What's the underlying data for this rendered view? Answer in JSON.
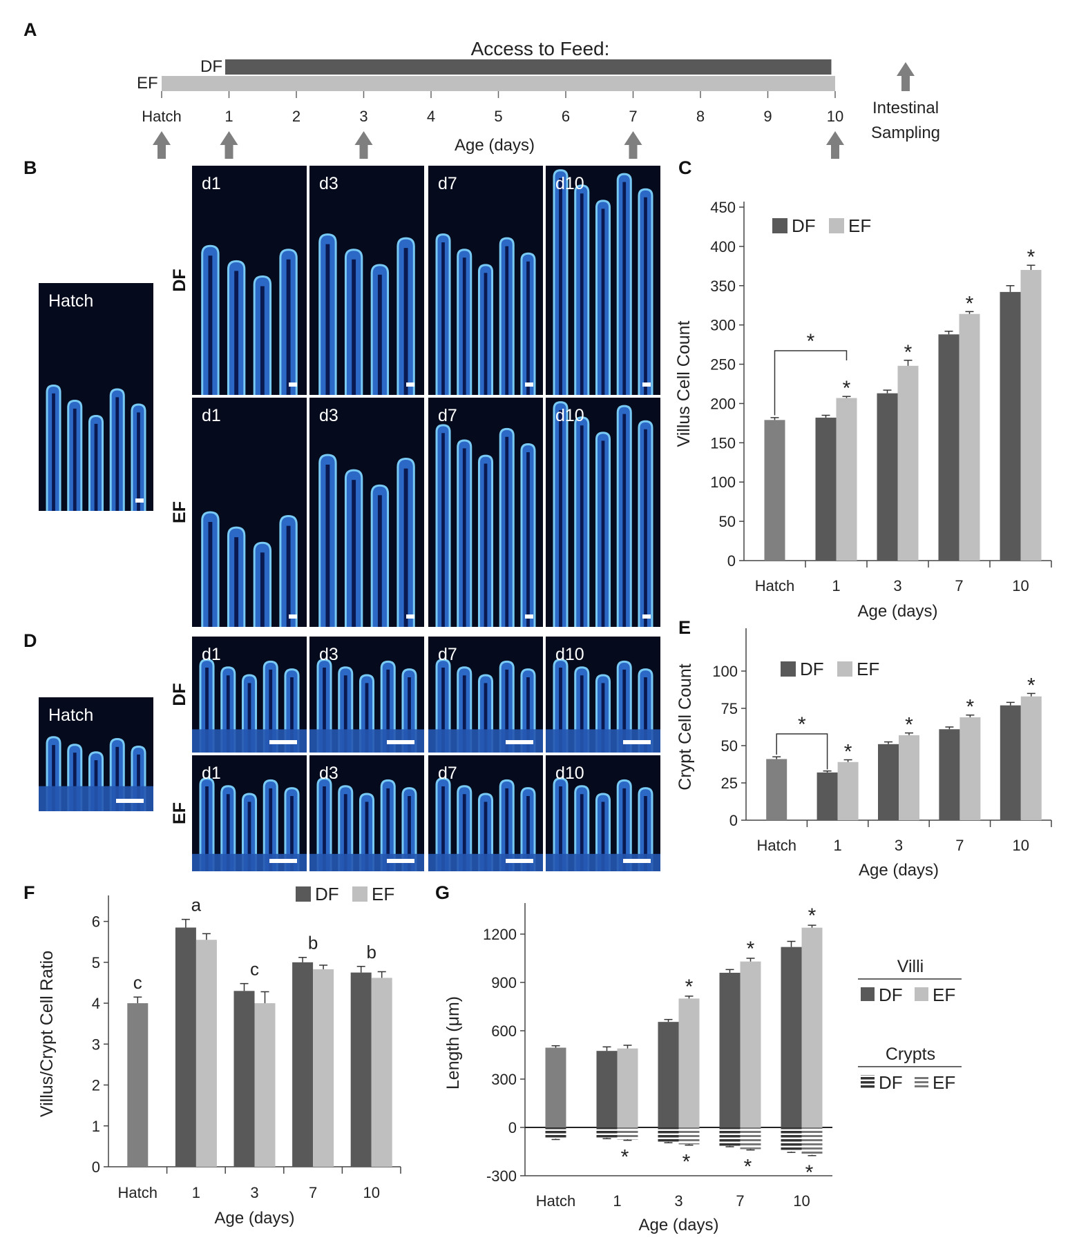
{
  "panels": {
    "A": "A",
    "B": "B",
    "C": "C",
    "D": "D",
    "E": "E",
    "F": "F",
    "G": "G"
  },
  "colors": {
    "DF": "#595959",
    "EF": "#bfbfbf",
    "hatch": "#808080",
    "arrow": "#7f7f7f",
    "micro_bg": "#050a1c",
    "micro_tissue": "#2f6fd0",
    "micro_edge": "#7fd4ff"
  },
  "timeline": {
    "title": "Access to Feed:",
    "df_label": "DF",
    "ef_label": "EF",
    "ticks": [
      "Hatch",
      "1",
      "2",
      "3",
      "4",
      "5",
      "6",
      "7",
      "8",
      "9",
      "10"
    ],
    "xlabel": "Age (days)",
    "sampling_label_1": "Intestinal",
    "sampling_label_2": "Sampling",
    "sampling_days": [
      "Hatch",
      "1",
      "3",
      "7",
      "10"
    ]
  },
  "micrographs": {
    "hatch_label": "Hatch",
    "row_df": "DF",
    "row_ef": "EF",
    "days": [
      "d1",
      "d3",
      "d7",
      "d10"
    ]
  },
  "chart_data": [
    {
      "panel": "C",
      "type": "bar",
      "categories": [
        "Hatch",
        "1",
        "3",
        "7",
        "10"
      ],
      "series": [
        {
          "name": "DF",
          "values": [
            null,
            182,
            213,
            288,
            342
          ],
          "errors": [
            null,
            3,
            4,
            4,
            8
          ]
        },
        {
          "name": "EF",
          "values": [
            null,
            207,
            248,
            314,
            370
          ],
          "errors": [
            null,
            2,
            7,
            3,
            6
          ]
        }
      ],
      "hatch": {
        "value": 179,
        "error": 3
      },
      "ylim": [
        0,
        450
      ],
      "yticks": [
        0,
        50,
        100,
        150,
        200,
        250,
        300,
        350,
        400,
        450
      ],
      "ylabel": "Villus Cell Count",
      "xlabel": "Age (days)",
      "legend": [
        "DF",
        "EF"
      ],
      "legend_position": "top-left",
      "annotations": [
        "*",
        "*",
        "*",
        "*",
        "*"
      ],
      "bracket_label": "*"
    },
    {
      "panel": "E",
      "type": "bar",
      "categories": [
        "Hatch",
        "1",
        "3",
        "7",
        "10"
      ],
      "series": [
        {
          "name": "DF",
          "values": [
            null,
            32,
            51,
            61,
            77
          ],
          "errors": [
            null,
            1,
            1.5,
            1.5,
            2
          ]
        },
        {
          "name": "EF",
          "values": [
            null,
            39,
            57,
            69,
            83
          ],
          "errors": [
            null,
            1.5,
            1.5,
            1.5,
            2
          ]
        }
      ],
      "hatch": {
        "value": 41,
        "error": 1.5
      },
      "ylim": [
        0,
        125
      ],
      "yticks": [
        0,
        25,
        50,
        75,
        100
      ],
      "ylabel": "Crypt Cell Count",
      "xlabel": "Age (days)",
      "legend": [
        "DF",
        "EF"
      ],
      "legend_position": "top-left",
      "annotations": [
        "*",
        "*",
        "*",
        "*",
        "*"
      ],
      "bracket_label": "*"
    },
    {
      "panel": "F",
      "type": "bar",
      "categories": [
        "Hatch",
        "1",
        "3",
        "7",
        "10"
      ],
      "series": [
        {
          "name": "DF",
          "values": [
            null,
            5.85,
            4.3,
            5.0,
            4.75
          ],
          "errors": [
            null,
            0.2,
            0.18,
            0.12,
            0.15
          ]
        },
        {
          "name": "EF",
          "values": [
            null,
            5.55,
            4.0,
            4.83,
            4.62
          ],
          "errors": [
            null,
            0.15,
            0.28,
            0.1,
            0.15
          ]
        }
      ],
      "hatch": {
        "value": 4.0,
        "error": 0.15
      },
      "ylim": [
        0,
        6.5
      ],
      "yticks": [
        0,
        1,
        2,
        3,
        4,
        5,
        6
      ],
      "ylabel": "Villus/Crypt Cell Ratio",
      "xlabel": "Age (days)",
      "legend": [
        "DF",
        "EF"
      ],
      "legend_position": "top-right",
      "letters": [
        "c",
        "a",
        "c",
        "b",
        "b"
      ]
    },
    {
      "panel": "G",
      "type": "bar",
      "categories": [
        "Hatch",
        "1",
        "3",
        "7",
        "10"
      ],
      "series": [
        {
          "name": "Villi DF",
          "values": [
            null,
            475,
            655,
            960,
            1120
          ],
          "errors": [
            null,
            25,
            15,
            20,
            35
          ]
        },
        {
          "name": "Villi EF",
          "values": [
            null,
            490,
            800,
            1030,
            1240
          ],
          "errors": [
            null,
            20,
            15,
            20,
            15
          ]
        },
        {
          "name": "Crypts DF",
          "values": [
            null,
            -65,
            -90,
            -115,
            -150
          ],
          "errors": [
            null,
            5,
            5,
            5,
            5
          ]
        },
        {
          "name": "Crypts EF",
          "values": [
            null,
            -75,
            -105,
            -135,
            -170
          ],
          "errors": [
            null,
            5,
            5,
            5,
            5
          ]
        }
      ],
      "hatch": {
        "villi": 495,
        "villi_error": 12,
        "crypt": -70,
        "crypt_error": 5
      },
      "ylim": [
        -300,
        1350
      ],
      "yticks": [
        -300,
        0,
        300,
        600,
        900,
        1200
      ],
      "ylabel": "Length (μm)",
      "xlabel": "Age (days)",
      "legend_villi_title": "Villi",
      "legend_crypts_title": "Crypts",
      "legend": [
        "DF",
        "EF"
      ],
      "legend_position": "right",
      "annotations": [
        "*",
        "*",
        "*",
        "*",
        "*",
        "*",
        "*",
        "*"
      ]
    }
  ]
}
